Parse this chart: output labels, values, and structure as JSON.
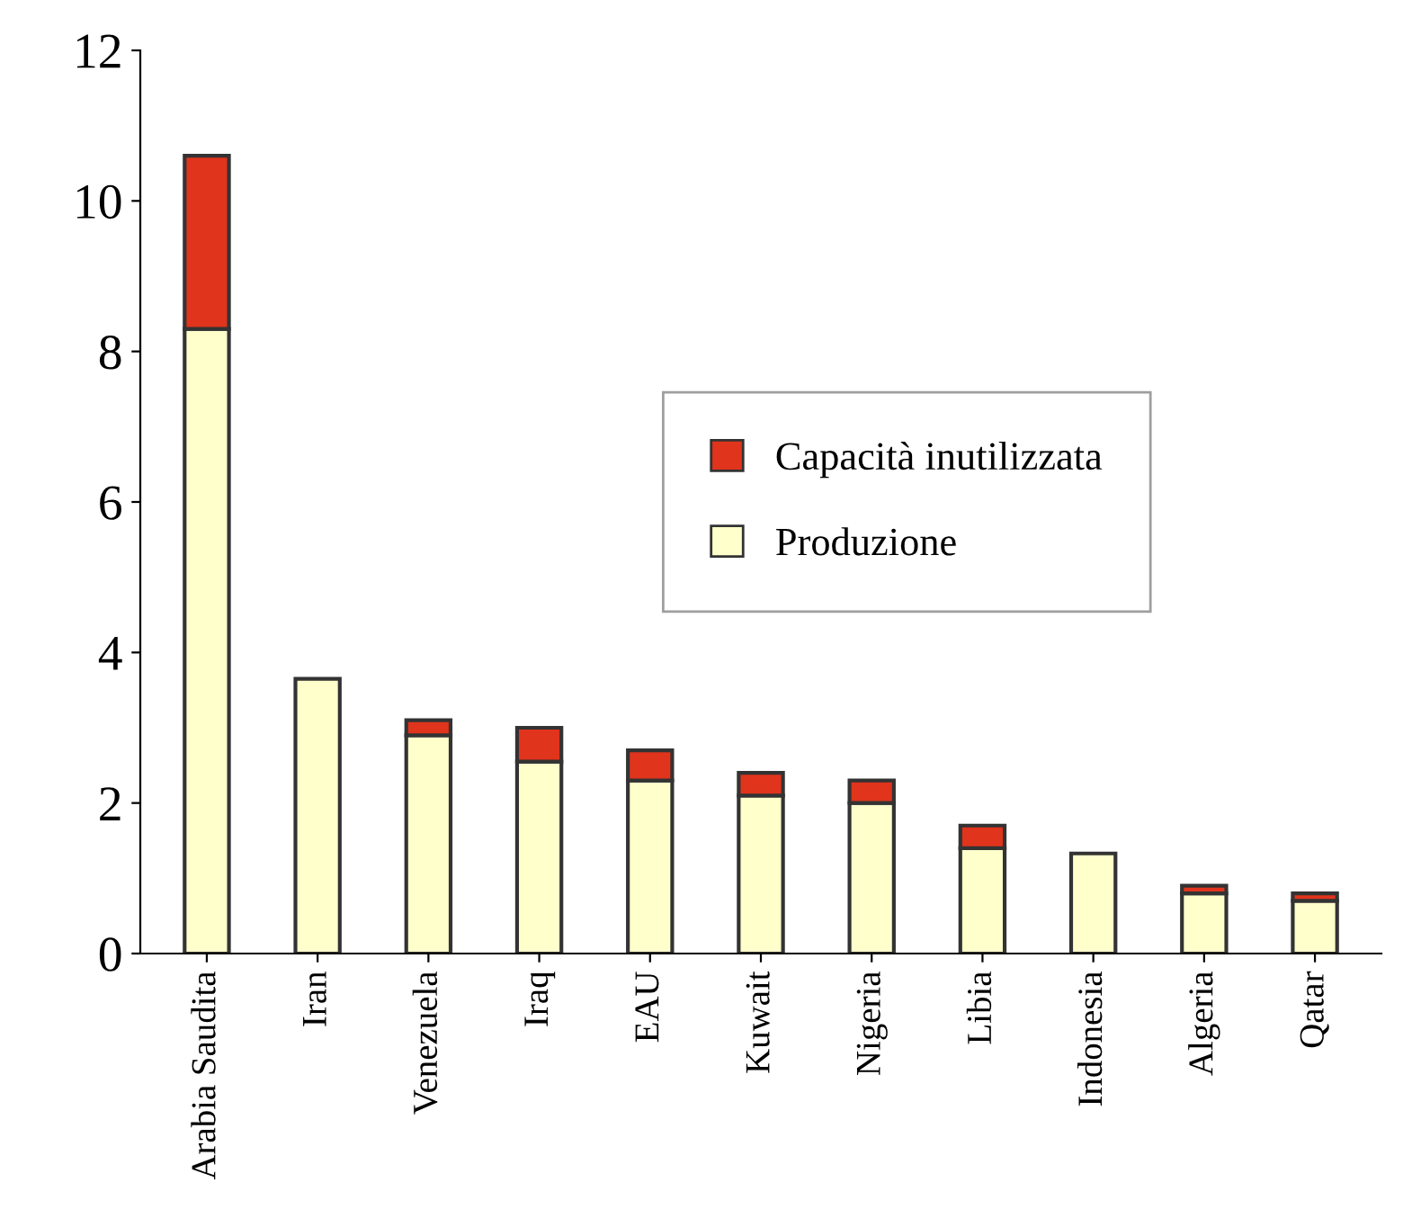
{
  "chart_data": {
    "type": "bar",
    "stacked": true,
    "categories": [
      "Arabia Saudita",
      "Iran",
      "Venezuela",
      "Iraq",
      "EAU",
      "Kuwait",
      "Nigeria",
      "Libia",
      "Indonesia",
      "Algeria",
      "Qatar"
    ],
    "series": [
      {
        "name": "Produzione",
        "color": "#ffffcc",
        "values": [
          8.3,
          3.65,
          2.9,
          2.55,
          2.3,
          2.1,
          2.0,
          1.4,
          1.33,
          0.8,
          0.7
        ]
      },
      {
        "name": "Capacità inutilizzata",
        "color": "#e0341c",
        "values": [
          2.3,
          null,
          0.2,
          0.45,
          0.4,
          0.3,
          0.3,
          0.3,
          null,
          0.1,
          0.1
        ]
      }
    ],
    "ylim": [
      0,
      12
    ],
    "yticks": [
      0,
      2,
      4,
      6,
      8,
      10,
      12
    ],
    "grid": false,
    "legend": "center right"
  }
}
